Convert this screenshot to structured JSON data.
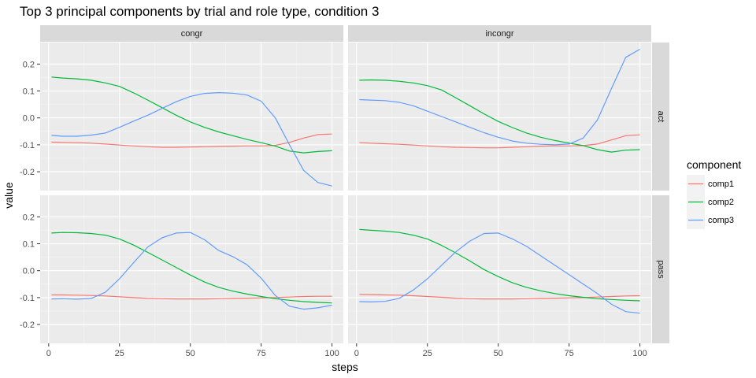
{
  "chart_data": {
    "type": "line",
    "title": "Top 3 principal components by trial and role type, condition 3",
    "xlabel": "steps",
    "ylabel": "value",
    "xlim": [
      -3,
      104
    ],
    "ylim": [
      -0.27,
      0.28
    ],
    "x_ticks": [
      0,
      25,
      50,
      75,
      100
    ],
    "y_ticks": [
      0.2,
      0.1,
      0.0,
      -0.1,
      -0.2
    ],
    "x_tick_labels": [
      "0",
      "25",
      "50",
      "75",
      "100"
    ],
    "y_tick_labels": [
      "0.2",
      "0.1",
      "0.0",
      "-0.1",
      "-0.2"
    ],
    "col_facets": [
      "congr",
      "incongr"
    ],
    "row_facets": [
      "act",
      "pass"
    ],
    "grid": true,
    "legend": {
      "title": "component",
      "position": "right",
      "items": [
        {
          "name": "comp1",
          "color": "#F8766D"
        },
        {
          "name": "comp2",
          "color": "#00BA38"
        },
        {
          "name": "comp3",
          "color": "#619CFF"
        }
      ]
    },
    "x": [
      1,
      5,
      10,
      15,
      20,
      25,
      30,
      35,
      40,
      45,
      50,
      55,
      60,
      65,
      70,
      75,
      80,
      85,
      90,
      95,
      100
    ],
    "panels": [
      {
        "col": "congr",
        "row": "act",
        "series": [
          {
            "name": "comp1",
            "values": [
              -0.09,
              -0.091,
              -0.092,
              -0.094,
              -0.097,
              -0.101,
              -0.104,
              -0.107,
              -0.109,
              -0.109,
              -0.108,
              -0.107,
              -0.106,
              -0.105,
              -0.104,
              -0.104,
              -0.102,
              -0.091,
              -0.075,
              -0.062,
              -0.06
            ]
          },
          {
            "name": "comp2",
            "values": [
              0.152,
              0.148,
              0.145,
              0.14,
              0.13,
              0.117,
              0.093,
              0.066,
              0.038,
              0.01,
              -0.015,
              -0.035,
              -0.052,
              -0.066,
              -0.08,
              -0.092,
              -0.105,
              -0.123,
              -0.13,
              -0.125,
              -0.122
            ]
          },
          {
            "name": "comp3",
            "values": [
              -0.065,
              -0.068,
              -0.068,
              -0.064,
              -0.056,
              -0.035,
              -0.012,
              0.01,
              0.035,
              0.06,
              0.08,
              0.091,
              0.094,
              0.092,
              0.085,
              0.062,
              0.0,
              -0.1,
              -0.195,
              -0.24,
              -0.253
            ]
          }
        ]
      },
      {
        "col": "incongr",
        "row": "act",
        "series": [
          {
            "name": "comp1",
            "values": [
              -0.092,
              -0.094,
              -0.096,
              -0.098,
              -0.101,
              -0.104,
              -0.107,
              -0.109,
              -0.11,
              -0.111,
              -0.111,
              -0.109,
              -0.107,
              -0.105,
              -0.104,
              -0.104,
              -0.103,
              -0.097,
              -0.082,
              -0.066,
              -0.063
            ]
          },
          {
            "name": "comp2",
            "values": [
              0.14,
              0.141,
              0.14,
              0.136,
              0.13,
              0.12,
              0.104,
              0.075,
              0.045,
              0.015,
              -0.013,
              -0.036,
              -0.056,
              -0.072,
              -0.084,
              -0.094,
              -0.103,
              -0.118,
              -0.127,
              -0.12,
              -0.118
            ]
          },
          {
            "name": "comp3",
            "values": [
              0.068,
              0.066,
              0.064,
              0.058,
              0.045,
              0.025,
              0.005,
              -0.015,
              -0.035,
              -0.055,
              -0.072,
              -0.086,
              -0.094,
              -0.098,
              -0.1,
              -0.097,
              -0.075,
              -0.008,
              0.11,
              0.225,
              0.255
            ]
          }
        ]
      },
      {
        "col": "congr",
        "row": "pass",
        "series": [
          {
            "name": "comp1",
            "values": [
              -0.09,
              -0.09,
              -0.091,
              -0.092,
              -0.094,
              -0.097,
              -0.1,
              -0.103,
              -0.104,
              -0.105,
              -0.105,
              -0.105,
              -0.104,
              -0.103,
              -0.102,
              -0.101,
              -0.1,
              -0.098,
              -0.096,
              -0.095,
              -0.095
            ]
          },
          {
            "name": "comp2",
            "values": [
              0.14,
              0.142,
              0.141,
              0.138,
              0.132,
              0.118,
              0.095,
              0.068,
              0.04,
              0.012,
              -0.016,
              -0.042,
              -0.062,
              -0.076,
              -0.087,
              -0.096,
              -0.104,
              -0.11,
              -0.115,
              -0.118,
              -0.12
            ]
          },
          {
            "name": "comp3",
            "values": [
              -0.105,
              -0.104,
              -0.106,
              -0.103,
              -0.08,
              -0.03,
              0.03,
              0.088,
              0.122,
              0.14,
              0.142,
              0.115,
              0.075,
              0.052,
              0.022,
              -0.028,
              -0.092,
              -0.132,
              -0.143,
              -0.138,
              -0.128
            ]
          }
        ]
      },
      {
        "col": "incongr",
        "row": "pass",
        "series": [
          {
            "name": "comp1",
            "values": [
              -0.088,
              -0.089,
              -0.09,
              -0.091,
              -0.093,
              -0.096,
              -0.099,
              -0.102,
              -0.104,
              -0.105,
              -0.105,
              -0.105,
              -0.104,
              -0.103,
              -0.102,
              -0.101,
              -0.1,
              -0.098,
              -0.096,
              -0.094,
              -0.093
            ]
          },
          {
            "name": "comp2",
            "values": [
              0.153,
              0.15,
              0.147,
              0.142,
              0.132,
              0.118,
              0.094,
              0.066,
              0.036,
              0.004,
              -0.022,
              -0.045,
              -0.062,
              -0.075,
              -0.085,
              -0.093,
              -0.099,
              -0.104,
              -0.107,
              -0.11,
              -0.112
            ]
          },
          {
            "name": "comp3",
            "values": [
              -0.115,
              -0.116,
              -0.114,
              -0.103,
              -0.072,
              -0.03,
              0.02,
              0.07,
              0.11,
              0.138,
              0.14,
              0.118,
              0.09,
              0.055,
              0.02,
              -0.015,
              -0.05,
              -0.085,
              -0.125,
              -0.152,
              -0.158
            ]
          }
        ]
      }
    ]
  }
}
